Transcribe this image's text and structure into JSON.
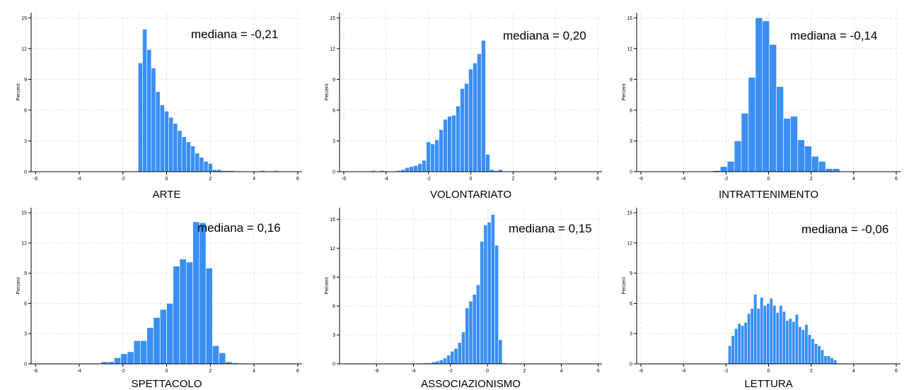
{
  "y_axis_label": "Percent",
  "chart_data": [
    {
      "type": "bar",
      "xlabel": "ARTE",
      "ylabel": "Percent",
      "annotation": "mediana = -0,21",
      "xlim": [
        -6.2,
        6.2
      ],
      "ylim": [
        0,
        15.5
      ],
      "xticks": [
        -6,
        -4,
        -2,
        0,
        2,
        4,
        6
      ],
      "xticklabels": [
        "-6",
        "-4",
        "-2",
        "0",
        "2",
        "4",
        "6"
      ],
      "yticks": [
        0,
        3,
        6,
        9,
        12,
        15
      ],
      "yticklabels": [
        "0",
        "3",
        "6",
        "9",
        "12",
        "15"
      ],
      "bin_start": -1.3,
      "bin_width": 0.2,
      "values": [
        10.6,
        13.9,
        11.9,
        10.1,
        7.8,
        6.5,
        5.9,
        5.3,
        4.7,
        4.0,
        3.4,
        2.9,
        2.5,
        1.8,
        1.4,
        1.0,
        0.8,
        0.2,
        0.2,
        0.1,
        0.1,
        0.1,
        0,
        0,
        0,
        0,
        0,
        0,
        0.1,
        0,
        0,
        0.1
      ]
    },
    {
      "type": "bar",
      "xlabel": "VOLONTARIATO",
      "ylabel": "Percent",
      "annotation": "mediana = 0,20",
      "xlim": [
        -6.2,
        6.2
      ],
      "ylim": [
        0,
        15.5
      ],
      "xticks": [
        -6,
        -4,
        -2,
        0,
        2,
        4,
        6
      ],
      "xticklabels": [
        "-6",
        "-4",
        "-2",
        "0",
        "2",
        "4",
        "6"
      ],
      "yticks": [
        0,
        3,
        6,
        9,
        12,
        15
      ],
      "yticklabels": [
        "0",
        "3",
        "6",
        "9",
        "12",
        "15"
      ],
      "bin_start": -4.7,
      "bin_width": 0.2,
      "values": [
        0.1,
        0,
        0.1,
        0,
        0,
        0,
        0.1,
        0.2,
        0.4,
        0.5,
        0.6,
        0.8,
        1.1,
        2.9,
        2.7,
        3.1,
        4.1,
        5.1,
        5.4,
        5.5,
        6.4,
        8.1,
        8.6,
        10.0,
        10.6,
        11.5,
        12.8,
        1.7,
        0.2,
        0.1,
        0.2
      ]
    },
    {
      "type": "bar",
      "xlabel": "INTRATTENIMENTO",
      "ylabel": "Percent",
      "annotation": "mediana = -0,14",
      "xlim": [
        -6.2,
        6.2
      ],
      "ylim": [
        0,
        15.5
      ],
      "xticks": [
        -6,
        -4,
        -2,
        0,
        2,
        4,
        6
      ],
      "xticklabels": [
        "-6",
        "-4",
        "-2",
        "0",
        "2",
        "4",
        "6"
      ],
      "yticks": [
        0,
        3,
        6,
        9,
        12,
        15
      ],
      "yticklabels": [
        "0",
        "3",
        "6",
        "9",
        "12",
        "15"
      ],
      "bin_start": -2.6,
      "bin_width": 0.33,
      "values": [
        0.1,
        0.5,
        1.0,
        3.0,
        5.7,
        9.2,
        15.0,
        14.7,
        12.4,
        8.3,
        5.2,
        5.4,
        3.1,
        2.5,
        1.5,
        1.0,
        0.3,
        0.3
      ]
    },
    {
      "type": "bar",
      "xlabel": "SPETTACOLO",
      "ylabel": "Percent",
      "annotation": "mediana = 0,16",
      "xlim": [
        -6.2,
        6.2
      ],
      "ylim": [
        0,
        15.5
      ],
      "xticks": [
        -6,
        -4,
        -2,
        0,
        2,
        4,
        6
      ],
      "xticklabels": [
        "-6",
        "-4",
        "-2",
        "0",
        "2",
        "4",
        "6"
      ],
      "yticks": [
        0,
        3,
        6,
        9,
        12,
        15
      ],
      "yticklabels": [
        "0",
        "3",
        "6",
        "9",
        "12",
        "15"
      ],
      "bin_start": -3.0,
      "bin_width": 0.3,
      "values": [
        0.2,
        0.2,
        0.6,
        1.0,
        1.2,
        2.3,
        2.3,
        3.6,
        4.6,
        5.4,
        6.0,
        9.7,
        10.4,
        10.1,
        14.1,
        14.0,
        9.5,
        1.8,
        1.1,
        0.2,
        0.1
      ]
    },
    {
      "type": "bar",
      "xlabel": "ASSOCIAZIONISMO",
      "ylabel": "Percent",
      "annotation": "mediana = 0,15",
      "xlim": [
        -8.0,
        6.2
      ],
      "ylim": [
        0,
        16.2
      ],
      "xticks": [
        -6,
        -4,
        -2,
        0,
        2,
        4,
        6
      ],
      "xticklabels": [
        "-6",
        "-4",
        "-2",
        "0",
        "2",
        "4",
        "6"
      ],
      "yticks": [
        0,
        3,
        6,
        9,
        12,
        15
      ],
      "yticklabels": [
        "0",
        "3",
        "6",
        "9",
        "12",
        "15"
      ],
      "bin_start": -3.4,
      "bin_width": 0.2,
      "values": [
        0.1,
        0.1,
        0.2,
        0.3,
        0.4,
        0.6,
        0.9,
        1.3,
        1.6,
        2.2,
        3.3,
        5.8,
        6.5,
        7.2,
        8.2,
        12.7,
        14.4,
        14.7,
        15.5,
        12.3,
        2.5,
        0.1
      ]
    },
    {
      "type": "bar",
      "xlabel": "LETTURA",
      "ylabel": "Percent",
      "annotation": "mediana = -0,06",
      "xlim": [
        -6.2,
        6.2
      ],
      "ylim": [
        0,
        15.5
      ],
      "xticks": [
        -6,
        -4,
        -2,
        0,
        2,
        4,
        6
      ],
      "xticklabels": [
        "-6",
        "-4",
        "-2",
        "0",
        "2",
        "4",
        "6"
      ],
      "yticks": [
        0,
        3,
        6,
        9,
        12,
        15
      ],
      "yticklabels": [
        "0",
        "3",
        "6",
        "9",
        "12",
        "15"
      ],
      "bin_start": -1.9,
      "bin_width": 0.15,
      "values": [
        1.8,
        2.8,
        3.5,
        4.0,
        3.8,
        4.1,
        5.0,
        5.5,
        6.9,
        5.5,
        6.6,
        5.8,
        6.0,
        6.5,
        5.8,
        5.1,
        5.8,
        5.2,
        4.3,
        4.5,
        4.2,
        4.9,
        3.7,
        3.4,
        3.9,
        2.9,
        2.5,
        2.0,
        1.8,
        1.4,
        0.8,
        0.8,
        0.6,
        0.4
      ]
    }
  ]
}
